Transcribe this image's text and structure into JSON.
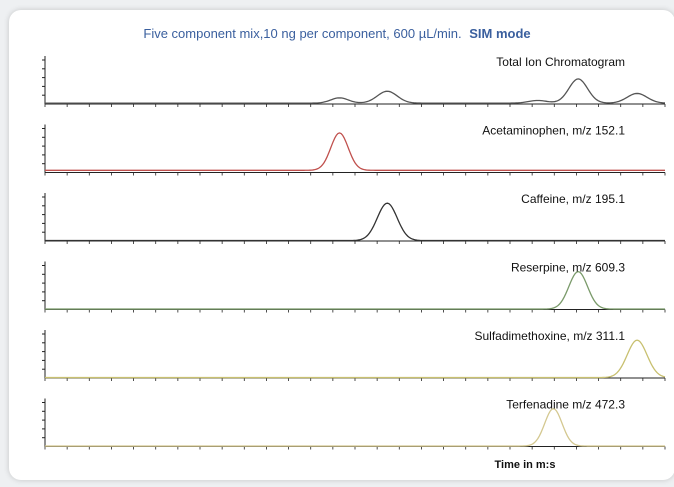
{
  "title_main": "Five component mix,10 ng per component, 600 µL/min.",
  "title_mode": "SIM mode",
  "x_axis_label": "Time in m:s",
  "colors": {
    "title": "#3a5f9e",
    "axis": "#222222"
  },
  "chart_data": {
    "type": "line",
    "xlim": [
      0,
      100
    ],
    "series": [
      {
        "name": "Total Ion Chromatogram",
        "color": "#555555",
        "peaks": [
          {
            "x": 47.5,
            "h": 0.12,
            "w": 1.4
          },
          {
            "x": 55.2,
            "h": 0.27,
            "w": 1.6
          },
          {
            "x": 86.0,
            "h": 0.55,
            "w": 1.5
          },
          {
            "x": 95.5,
            "h": 0.22,
            "w": 1.6
          },
          {
            "x": 79.5,
            "h": 0.06,
            "w": 1.5
          }
        ],
        "baseline": 0.02
      },
      {
        "name": "Acetaminophen, m/z 152.1",
        "color": "#c0504d",
        "peaks": [
          {
            "x": 47.5,
            "h": 0.85,
            "w": 1.4
          }
        ],
        "baseline": 0.05
      },
      {
        "name": "Caffeine, m/z 195.1",
        "color": "#333333",
        "peaks": [
          {
            "x": 55.2,
            "h": 0.85,
            "w": 1.6
          }
        ],
        "baseline": 0.01
      },
      {
        "name": "Reserpine, m/z 609.3",
        "color": "#7a9a6a",
        "peaks": [
          {
            "x": 86.0,
            "h": 0.85,
            "w": 1.5
          }
        ],
        "baseline": 0.01
      },
      {
        "name": "Sulfadimethoxine, m/z 311.1",
        "color": "#c8c070",
        "peaks": [
          {
            "x": 95.5,
            "h": 0.85,
            "w": 1.6
          }
        ],
        "baseline": 0.01
      },
      {
        "name": "Terfenadine m/z 472.3",
        "color": "#d4c890",
        "peaks": [
          {
            "x": 82.0,
            "h": 0.85,
            "w": 1.4
          }
        ],
        "baseline": 0.01
      }
    ]
  }
}
